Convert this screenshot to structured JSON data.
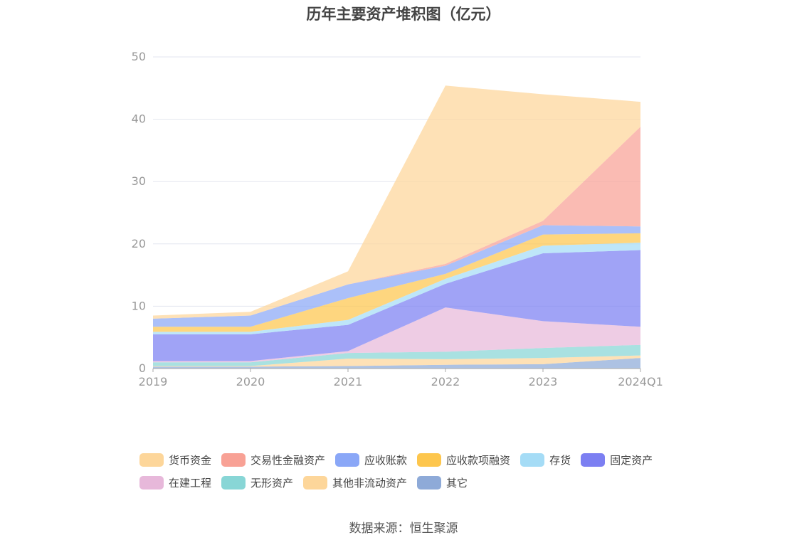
{
  "chart_data": {
    "type": "area",
    "stacked": true,
    "title": "历年主要资产堆积图（亿元）",
    "x": [
      "2019",
      "2020",
      "2021",
      "2022",
      "2023",
      "2024Q1"
    ],
    "yticks": [
      0,
      10,
      20,
      30,
      40,
      50
    ],
    "ylim": [
      0,
      50
    ],
    "grid": true,
    "legend_position": "bottom",
    "series": [
      {
        "name": "其它",
        "color": "#8eaad8",
        "values": [
          0.3,
          0.3,
          0.4,
          0.6,
          0.7,
          1.7
        ]
      },
      {
        "name": "其他非流动资产",
        "color": "#fdd69a",
        "values": [
          0.1,
          0.1,
          1.2,
          0.9,
          1.0,
          0.4
        ]
      },
      {
        "name": "无形资产",
        "color": "#88d6d6",
        "values": [
          0.6,
          0.6,
          0.9,
          1.2,
          1.6,
          1.7
        ]
      },
      {
        "name": "在建工程",
        "color": "#e7b8da",
        "values": [
          0.2,
          0.2,
          0.3,
          7.1,
          4.3,
          2.9
        ]
      },
      {
        "name": "固定资产",
        "color": "#7c7ff2",
        "values": [
          4.3,
          4.3,
          4.2,
          3.8,
          10.9,
          12.3
        ]
      },
      {
        "name": "存货",
        "color": "#a5dcf6",
        "values": [
          0.4,
          0.4,
          0.8,
          0.8,
          1.2,
          1.2
        ]
      },
      {
        "name": "应收款项融资",
        "color": "#fdc64d",
        "values": [
          0.8,
          0.8,
          3.5,
          0.8,
          1.8,
          1.5
        ]
      },
      {
        "name": "应收账款",
        "color": "#8aa7f7",
        "values": [
          1.3,
          1.8,
          2.2,
          1.3,
          1.5,
          1.1
        ]
      },
      {
        "name": "交易性金融资产",
        "color": "#f8a195",
        "values": [
          0.0,
          0.0,
          0.0,
          0.3,
          0.7,
          16.0
        ]
      },
      {
        "name": "货币资金",
        "color": "#fdd69a",
        "values": [
          0.5,
          0.6,
          2.1,
          28.6,
          20.3,
          4.0
        ]
      }
    ]
  },
  "legend": {
    "row1": [
      {
        "label": "货币资金",
        "color": "#fdd69a"
      },
      {
        "label": "交易性金融资产",
        "color": "#f8a195"
      },
      {
        "label": "应收账款",
        "color": "#8aa7f7"
      },
      {
        "label": "应收款项融资",
        "color": "#fdc64d"
      },
      {
        "label": "存货",
        "color": "#a5dcf6"
      },
      {
        "label": "固定资产",
        "color": "#7c7ff2"
      }
    ],
    "row2": [
      {
        "label": "在建工程",
        "color": "#e7b8da"
      },
      {
        "label": "无形资产",
        "color": "#88d6d6"
      },
      {
        "label": "其他非流动资产",
        "color": "#fdd69a"
      },
      {
        "label": "其它",
        "color": "#8eaad8"
      }
    ]
  },
  "source": "数据来源：恒生聚源"
}
